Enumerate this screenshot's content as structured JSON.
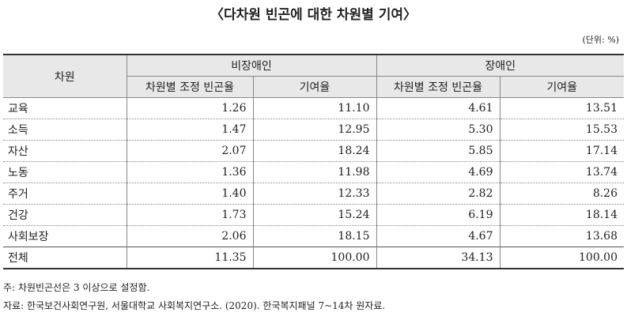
{
  "header": {
    "title": "〈다차원 빈곤에 대한 차원별 기여〉",
    "unit": "(단위: %)"
  },
  "table": {
    "col_header": "차원",
    "groups": [
      "비장애인",
      "장애인"
    ],
    "subheaders": [
      "차원별 조정 빈곤율",
      "기여율",
      "차원별 조정 빈곤율",
      "기여율"
    ],
    "rows": [
      [
        "교육",
        "1.26",
        "11.10",
        "4.61",
        "13.51"
      ],
      [
        "소득",
        "1.47",
        "12.95",
        "5.30",
        "15.53"
      ],
      [
        "자산",
        "2.07",
        "18.24",
        "5.85",
        "17.14"
      ],
      [
        "노동",
        "1.36",
        "11.98",
        "4.69",
        "13.74"
      ],
      [
        "주거",
        "1.40",
        "12.33",
        "2.82",
        "8.26"
      ],
      [
        "건강",
        "1.73",
        "15.24",
        "6.19",
        "18.14"
      ],
      [
        "사회보장",
        "2.06",
        "18.15",
        "4.67",
        "13.68"
      ],
      [
        "전체",
        "11.35",
        "100.00",
        "34.13",
        "100.00"
      ]
    ]
  },
  "notes": [
    "주: 차원빈곤선은 3 이상으로 설정함.",
    "자료: 한국보건사회연구원, 서울대학교 사회복지연구소. (2020). 한국복지패널 7~14차 원자료."
  ]
}
